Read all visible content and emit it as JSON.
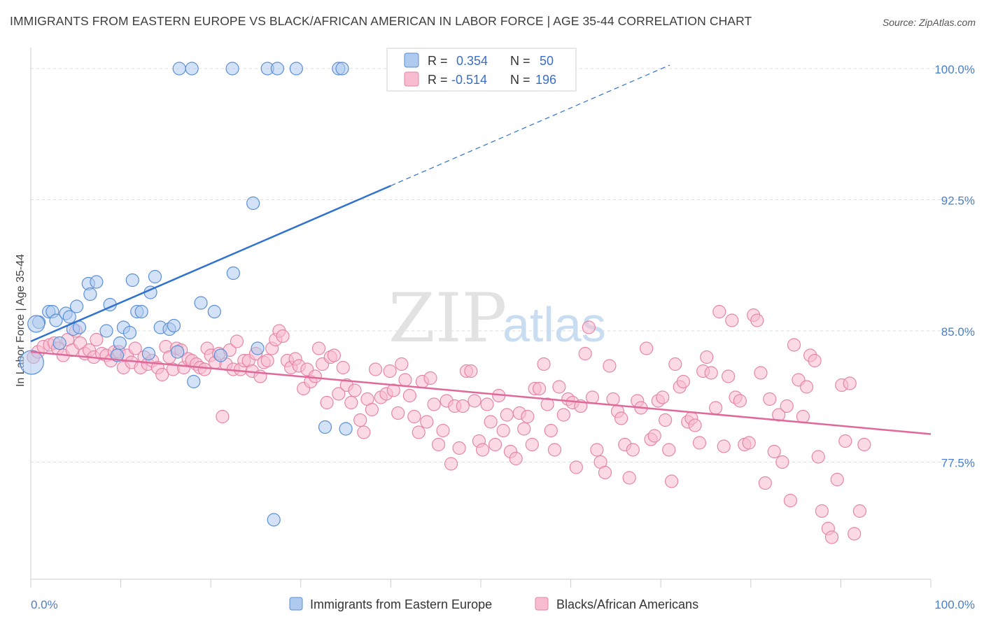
{
  "title": "IMMIGRANTS FROM EASTERN EUROPE VS BLACK/AFRICAN AMERICAN IN LABOR FORCE | AGE 35-44 CORRELATION CHART",
  "source": "Source: ZipAtlas.com",
  "watermark": {
    "zip": "ZIP",
    "atlas": "atlas"
  },
  "legend": {
    "rows": [
      {
        "r_label": "R =",
        "r_value": "0.354",
        "n_label": "N =",
        "n_value": "50"
      },
      {
        "r_label": "R =",
        "r_value": "-0.514",
        "n_label": "N =",
        "n_value": "196"
      }
    ]
  },
  "colors": {
    "blue_fill": "#aecbef",
    "blue_stroke": "#5b8fd6",
    "blue_line": "#2f72cf",
    "pink_fill": "#f7bcd0",
    "pink_stroke": "#e586a6",
    "pink_line": "#e0699a",
    "grid": "#dcdcdc",
    "tick_text": "#4a7fc9"
  },
  "chart_data": {
    "type": "scatter",
    "title": "IMMIGRANTS FROM EASTERN EUROPE VS BLACK/AFRICAN AMERICAN IN LABOR FORCE | AGE 35-44 CORRELATION CHART",
    "xlabel": "",
    "ylabel": "In Labor Force | Age 35-44",
    "xlim": [
      0,
      100
    ],
    "ylim": [
      70.8,
      101.2
    ],
    "x_tick_labels": [
      "0.0%",
      "100.0%"
    ],
    "y_ticks": [
      77.5,
      85.0,
      92.5,
      100.0
    ],
    "y_tick_labels": [
      "77.5%",
      "85.0%",
      "92.5%",
      "100.0%"
    ],
    "grid": true,
    "legend_position": "top-center",
    "series": [
      {
        "name": "Immigrants from Eastern Europe",
        "r": 0.354,
        "n": 50,
        "trend": {
          "x0": 0,
          "y0": 84.4,
          "x1": 40,
          "y1": 93.3,
          "dashed_to_x": 71,
          "dashed_to_y": 100.2
        },
        "points": [
          [
            0.1,
            83.2
          ],
          [
            0.9,
            85.5
          ],
          [
            2.0,
            86.1
          ],
          [
            2.4,
            86.1
          ],
          [
            2.8,
            85.6
          ],
          [
            3.2,
            84.3
          ],
          [
            3.9,
            86.0
          ],
          [
            4.3,
            85.8
          ],
          [
            4.7,
            85.1
          ],
          [
            5.1,
            86.4
          ],
          [
            5.4,
            85.2
          ],
          [
            6.4,
            87.7
          ],
          [
            6.6,
            87.1
          ],
          [
            7.3,
            87.8
          ],
          [
            8.4,
            85.0
          ],
          [
            8.8,
            86.5
          ],
          [
            9.6,
            83.6
          ],
          [
            9.9,
            84.3
          ],
          [
            10.3,
            85.2
          ],
          [
            11.0,
            84.9
          ],
          [
            11.3,
            87.9
          ],
          [
            11.8,
            86.1
          ],
          [
            12.3,
            86.1
          ],
          [
            13.1,
            83.7
          ],
          [
            13.3,
            87.2
          ],
          [
            13.8,
            88.1
          ],
          [
            14.4,
            85.2
          ],
          [
            15.4,
            85.1
          ],
          [
            15.9,
            85.3
          ],
          [
            16.3,
            83.8
          ],
          [
            16.5,
            100.0
          ],
          [
            17.9,
            100.0
          ],
          [
            18.1,
            82.1
          ],
          [
            18.9,
            86.6
          ],
          [
            20.4,
            86.1
          ],
          [
            21.1,
            83.6
          ],
          [
            22.4,
            100.0
          ],
          [
            22.5,
            88.3
          ],
          [
            24.7,
            92.3
          ],
          [
            25.2,
            84.0
          ],
          [
            26.3,
            100.0
          ],
          [
            27.0,
            74.2
          ],
          [
            27.4,
            100.0
          ],
          [
            29.5,
            100.0
          ],
          [
            32.7,
            79.5
          ],
          [
            34.2,
            100.0
          ],
          [
            34.6,
            100.0
          ],
          [
            35.0,
            79.4
          ],
          [
            0.6,
            85.4
          ]
        ]
      },
      {
        "name": "Blacks/African Americans",
        "r": -0.514,
        "n": 196,
        "trend": {
          "x0": 0,
          "y0": 83.8,
          "x1": 100,
          "y1": 79.1
        },
        "points": [
          [
            0.3,
            83.5
          ],
          [
            0.8,
            83.8
          ],
          [
            1.4,
            84.1
          ],
          [
            2.1,
            84.2
          ],
          [
            2.6,
            84.3
          ],
          [
            3.0,
            84.0
          ],
          [
            3.6,
            83.6
          ],
          [
            4.1,
            84.5
          ],
          [
            4.6,
            83.9
          ],
          [
            5.0,
            85.0
          ],
          [
            5.5,
            84.3
          ],
          [
            6.0,
            83.7
          ],
          [
            6.5,
            83.9
          ],
          [
            7.0,
            83.5
          ],
          [
            7.3,
            84.5
          ],
          [
            7.9,
            83.7
          ],
          [
            8.4,
            83.6
          ],
          [
            8.9,
            83.3
          ],
          [
            9.3,
            83.8
          ],
          [
            9.8,
            83.8
          ],
          [
            10.3,
            82.9
          ],
          [
            10.7,
            83.6
          ],
          [
            11.2,
            83.2
          ],
          [
            11.6,
            84.0
          ],
          [
            12.2,
            82.9
          ],
          [
            12.6,
            83.5
          ],
          [
            13.0,
            83.1
          ],
          [
            13.5,
            83.3
          ],
          [
            14.1,
            82.9
          ],
          [
            14.6,
            82.5
          ],
          [
            15.0,
            84.1
          ],
          [
            15.4,
            83.5
          ],
          [
            15.8,
            82.8
          ],
          [
            16.2,
            84.0
          ],
          [
            16.7,
            83.9
          ],
          [
            17.0,
            82.9
          ],
          [
            17.5,
            83.4
          ],
          [
            17.9,
            83.3
          ],
          [
            18.4,
            83.1
          ],
          [
            18.8,
            82.9
          ],
          [
            19.3,
            82.8
          ],
          [
            19.6,
            84.0
          ],
          [
            20.0,
            83.6
          ],
          [
            20.5,
            83.2
          ],
          [
            20.9,
            83.7
          ],
          [
            21.3,
            80.1
          ],
          [
            21.7,
            83.1
          ],
          [
            22.1,
            83.9
          ],
          [
            22.5,
            82.8
          ],
          [
            22.9,
            84.4
          ],
          [
            23.3,
            82.8
          ],
          [
            23.7,
            83.3
          ],
          [
            24.2,
            83.3
          ],
          [
            24.6,
            82.7
          ],
          [
            25.0,
            83.7
          ],
          [
            25.5,
            82.4
          ],
          [
            25.9,
            83.2
          ],
          [
            26.3,
            83.3
          ],
          [
            26.8,
            84.0
          ],
          [
            27.2,
            84.5
          ],
          [
            27.6,
            85.0
          ],
          [
            28.0,
            84.7
          ],
          [
            28.5,
            83.3
          ],
          [
            28.9,
            82.9
          ],
          [
            29.4,
            83.4
          ],
          [
            29.8,
            83.0
          ],
          [
            30.3,
            81.7
          ],
          [
            30.7,
            82.8
          ],
          [
            31.1,
            82.1
          ],
          [
            31.6,
            82.4
          ],
          [
            32.0,
            84.0
          ],
          [
            32.4,
            83.1
          ],
          [
            32.9,
            80.9
          ],
          [
            33.3,
            83.5
          ],
          [
            33.7,
            83.6
          ],
          [
            34.2,
            81.4
          ],
          [
            34.7,
            82.9
          ],
          [
            35.1,
            81.9
          ],
          [
            35.6,
            80.9
          ],
          [
            36.0,
            81.6
          ],
          [
            36.6,
            79.9
          ],
          [
            37.0,
            79.2
          ],
          [
            37.4,
            81.1
          ],
          [
            37.9,
            80.5
          ],
          [
            38.3,
            82.8
          ],
          [
            38.9,
            81.2
          ],
          [
            39.5,
            81.4
          ],
          [
            39.9,
            82.7
          ],
          [
            40.3,
            81.6
          ],
          [
            40.8,
            80.3
          ],
          [
            41.2,
            83.1
          ],
          [
            41.6,
            82.2
          ],
          [
            42.1,
            81.3
          ],
          [
            42.6,
            80.1
          ],
          [
            43.1,
            79.2
          ],
          [
            43.5,
            82.1
          ],
          [
            44.0,
            79.8
          ],
          [
            44.4,
            82.3
          ],
          [
            44.8,
            80.8
          ],
          [
            45.3,
            78.5
          ],
          [
            45.8,
            79.3
          ],
          [
            46.2,
            81.0
          ],
          [
            46.7,
            77.4
          ],
          [
            47.1,
            80.7
          ],
          [
            47.6,
            78.3
          ],
          [
            48.0,
            80.7
          ],
          [
            48.4,
            82.7
          ],
          [
            48.9,
            82.7
          ],
          [
            49.3,
            81.0
          ],
          [
            49.8,
            78.7
          ],
          [
            50.2,
            78.2
          ],
          [
            50.7,
            80.8
          ],
          [
            51.1,
            79.8
          ],
          [
            51.6,
            78.5
          ],
          [
            52.0,
            81.3
          ],
          [
            52.5,
            79.3
          ],
          [
            52.9,
            80.2
          ],
          [
            53.3,
            78.1
          ],
          [
            53.9,
            77.7
          ],
          [
            54.3,
            80.3
          ],
          [
            54.8,
            79.4
          ],
          [
            55.2,
            80.1
          ],
          [
            55.7,
            78.5
          ],
          [
            56.0,
            81.7
          ],
          [
            56.5,
            81.7
          ],
          [
            57.0,
            83.1
          ],
          [
            57.4,
            80.8
          ],
          [
            57.8,
            79.3
          ],
          [
            58.2,
            78.2
          ],
          [
            58.7,
            81.8
          ],
          [
            59.2,
            80.2
          ],
          [
            59.7,
            81.1
          ],
          [
            60.2,
            80.9
          ],
          [
            60.6,
            77.2
          ],
          [
            61.1,
            80.7
          ],
          [
            61.6,
            83.7
          ],
          [
            62.0,
            85.2
          ],
          [
            62.4,
            81.2
          ],
          [
            62.9,
            78.2
          ],
          [
            63.3,
            77.5
          ],
          [
            63.8,
            76.9
          ],
          [
            64.3,
            83.0
          ],
          [
            64.7,
            81.1
          ],
          [
            65.2,
            80.4
          ],
          [
            65.6,
            80.0
          ],
          [
            66.0,
            78.5
          ],
          [
            66.5,
            76.6
          ],
          [
            66.9,
            78.2
          ],
          [
            67.4,
            81.0
          ],
          [
            67.8,
            80.6
          ],
          [
            68.4,
            84.0
          ],
          [
            68.9,
            78.8
          ],
          [
            69.3,
            79.0
          ],
          [
            69.7,
            81.0
          ],
          [
            70.2,
            81.2
          ],
          [
            70.5,
            79.9
          ],
          [
            70.9,
            78.2
          ],
          [
            71.2,
            76.4
          ],
          [
            71.6,
            83.1
          ],
          [
            72.1,
            81.8
          ],
          [
            72.5,
            82.1
          ],
          [
            73.0,
            79.8
          ],
          [
            73.4,
            80.0
          ],
          [
            73.8,
            79.6
          ],
          [
            74.3,
            78.6
          ],
          [
            74.7,
            82.7
          ],
          [
            75.1,
            83.5
          ],
          [
            75.6,
            82.6
          ],
          [
            76.1,
            80.6
          ],
          [
            76.5,
            86.1
          ],
          [
            77.0,
            78.4
          ],
          [
            77.5,
            82.4
          ],
          [
            77.9,
            85.6
          ],
          [
            78.3,
            81.2
          ],
          [
            78.8,
            81.0
          ],
          [
            79.3,
            78.5
          ],
          [
            79.8,
            78.6
          ],
          [
            80.3,
            85.9
          ],
          [
            80.7,
            85.6
          ],
          [
            81.1,
            82.6
          ],
          [
            81.6,
            76.3
          ],
          [
            82.1,
            81.1
          ],
          [
            82.6,
            78.1
          ],
          [
            83.1,
            80.2
          ],
          [
            83.5,
            77.5
          ],
          [
            84.0,
            80.7
          ],
          [
            84.4,
            75.3
          ],
          [
            84.8,
            84.2
          ],
          [
            85.3,
            82.2
          ],
          [
            85.8,
            80.1
          ],
          [
            86.2,
            81.8
          ],
          [
            86.6,
            83.6
          ],
          [
            87.1,
            83.3
          ],
          [
            87.5,
            77.8
          ],
          [
            87.9,
            74.7
          ],
          [
            88.6,
            73.7
          ],
          [
            89.0,
            73.2
          ],
          [
            89.6,
            76.5
          ],
          [
            90.1,
            81.9
          ],
          [
            90.5,
            78.7
          ],
          [
            91.0,
            82.0
          ],
          [
            91.5,
            73.4
          ],
          [
            92.1,
            74.7
          ],
          [
            92.6,
            78.5
          ]
        ]
      }
    ]
  },
  "bottom_legend": {
    "blue_label": "Immigrants from Eastern Europe",
    "pink_label": "Blacks/African Americans"
  }
}
